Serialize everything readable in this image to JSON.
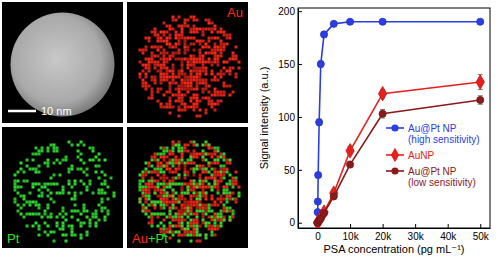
{
  "chart_data": {
    "type": "line",
    "x_label": "PSA concentration (pg mL⁻¹)",
    "y_label": "Signal intensity (a.u.)",
    "xlim": [
      -6000,
      53000
    ],
    "ylim": [
      -5,
      203
    ],
    "xticks": [
      0,
      {
        "value": 10000,
        "label": "10k"
      },
      {
        "value": 20000,
        "label": "20k"
      },
      {
        "value": 30000,
        "label": "30k"
      },
      {
        "value": 40000,
        "label": "40k"
      },
      {
        "value": 50000,
        "label": "50k"
      }
    ],
    "yticks": [
      0,
      50,
      100,
      150,
      200
    ],
    "legend": "right",
    "series": [
      {
        "name": "Au@Pt NP (high sensitivity)",
        "color": "#2b3ee6",
        "marker": "circle",
        "x": [
          0,
          50,
          100,
          200,
          500,
          1000,
          2000,
          5000,
          10000,
          20000,
          50000
        ],
        "values": [
          0,
          10,
          20,
          45,
          95,
          150,
          178,
          188,
          190,
          190,
          190
        ],
        "errors": [
          1,
          1,
          1,
          2,
          3,
          3,
          2,
          2,
          1,
          1,
          1
        ]
      },
      {
        "name": "AuNP",
        "color": "#e8201c",
        "marker": "diamond",
        "x": [
          0,
          500,
          1000,
          2000,
          5000,
          10000,
          20000,
          50000
        ],
        "values": [
          0,
          2,
          5,
          10,
          28,
          68,
          122,
          133
        ],
        "errors": [
          1,
          1,
          1,
          2,
          3,
          4,
          4,
          7
        ]
      },
      {
        "name": "Au@Pt NP (low sensitivity)",
        "color": "#8b1a1a",
        "marker": "circle",
        "x": [
          0,
          500,
          1000,
          2000,
          5000,
          10000,
          20000,
          50000
        ],
        "values": [
          0,
          2,
          4,
          9,
          25,
          55,
          103,
          116
        ],
        "errors": [
          1,
          1,
          1,
          2,
          3,
          3,
          4,
          4
        ]
      }
    ]
  },
  "micrographs": {
    "scale_bar": "10 nm",
    "panels": [
      "Au",
      "Pt",
      "Au+Pt"
    ]
  }
}
